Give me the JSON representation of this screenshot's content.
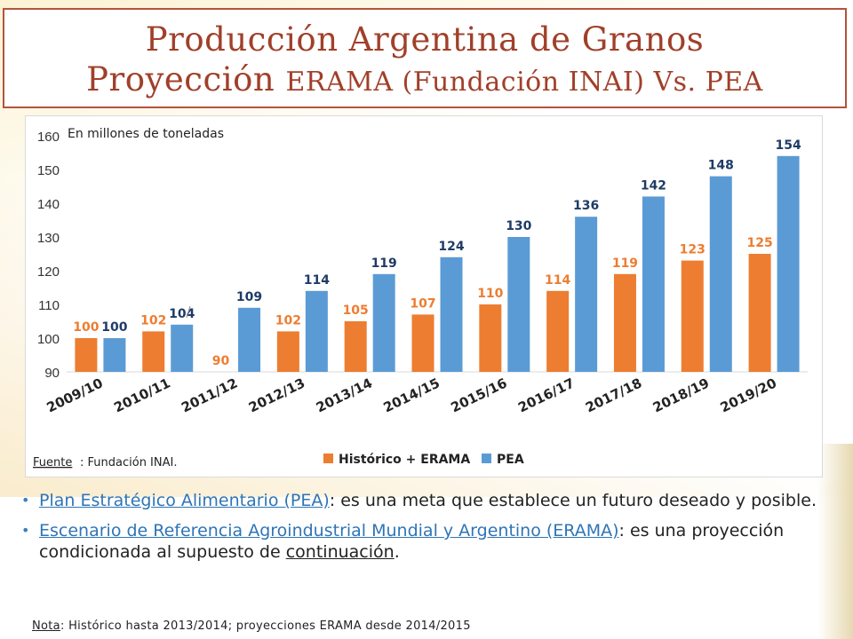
{
  "title": {
    "line1": "Producción Argentina de Granos",
    "line2_part1": "Proyección ",
    "line2_part2": "ERAMA (Fundación INAI) Vs. PEA"
  },
  "chart_data": {
    "type": "bar",
    "unit_label": "En millones de toneladas",
    "categories": [
      "2009/10",
      "2010/11",
      "2011/12",
      "2012/13",
      "2013/14",
      "2014/15",
      "2015/16",
      "2016/17",
      "2017/18",
      "2018/19",
      "2019/20"
    ],
    "series": [
      {
        "name": "Histórico + ERAMA",
        "color": "#ed7d31",
        "values": [
          100,
          102,
          90,
          102,
          105,
          107,
          110,
          114,
          119,
          123,
          125
        ]
      },
      {
        "name": "PEA",
        "color": "#5b9bd5",
        "values": [
          100,
          104,
          109,
          114,
          119,
          124,
          130,
          136,
          142,
          148,
          154
        ]
      }
    ],
    "ylim": [
      90,
      160
    ],
    "yticks": [
      90,
      100,
      110,
      120,
      130,
      140,
      150,
      160
    ],
    "grid": false,
    "legend": "bottom",
    "source_label": "Fuente",
    "source_text": ": Fundación INAI."
  },
  "bullets": [
    {
      "link": "Plan Estratégico Alimentario (PEA)",
      "text": ": es una meta que establece un futuro deseado y posible."
    },
    {
      "link": "Escenario de Referencia Agroindustrial Mundial y Argentino (ERAMA)",
      "text_before": ": es una proyección condicionada al supuesto de ",
      "underlined": "continuación",
      "text_after": "."
    }
  ],
  "note": {
    "label": "Nota",
    "text": ": Histórico hasta 2013/2014; proyecciones ERAMA desde 2014/2015"
  }
}
